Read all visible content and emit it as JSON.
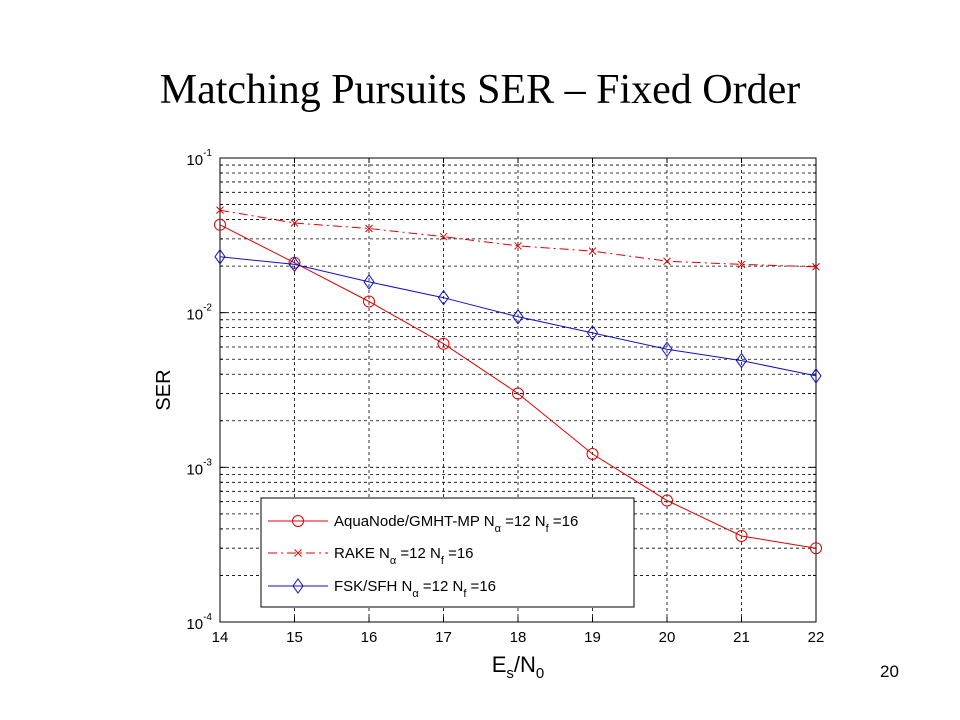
{
  "slide": {
    "title": "Matching Pursuits SER – Fixed Order",
    "page_number": "20"
  },
  "chart_data": {
    "type": "line",
    "title": "",
    "xlabel": {
      "main": "E",
      "sub1": "s",
      "mid": "/N",
      "sub2": "0"
    },
    "ylabel": "SER",
    "y_scale": "log",
    "xlim": [
      14,
      22
    ],
    "ylim": [
      0.0001,
      0.1
    ],
    "grid": true,
    "legend_position": "bottom-right",
    "x": [
      14,
      15,
      16,
      17,
      18,
      19,
      20,
      21,
      22
    ],
    "x_tick_labels": [
      "14",
      "15",
      "16",
      "17",
      "18",
      "19",
      "20",
      "21",
      "22"
    ],
    "y_tick_labels": [
      {
        "value": 0.1,
        "base": "10",
        "exp": "-1"
      },
      {
        "value": 0.01,
        "base": "10",
        "exp": "-2"
      },
      {
        "value": 0.001,
        "base": "10",
        "exp": "-3"
      },
      {
        "value": 0.0001,
        "base": "10",
        "exp": "-4"
      }
    ],
    "series": [
      {
        "id": "aquanode",
        "legend": {
          "main": "AquaNode/GMHT-MP N",
          "sub1": "α",
          "mid": " =12 N",
          "sub2": "f",
          "tail": " =16"
        },
        "color": "#e00000",
        "marker": "circle",
        "dash": "",
        "values": [
          0.037,
          0.021,
          0.0118,
          0.0063,
          0.003,
          0.00122,
          0.00061,
          0.00036,
          0.0003
        ]
      },
      {
        "id": "rake",
        "legend": {
          "main": "RAKE N",
          "sub1": "α",
          "mid": " =12 N",
          "sub2": "f",
          "tail": " =16"
        },
        "color": "#e00000",
        "marker": "x",
        "dash": "9,4,2,4",
        "values": [
          0.046,
          0.038,
          0.035,
          0.031,
          0.027,
          0.025,
          0.0215,
          0.0205,
          0.0198
        ]
      },
      {
        "id": "fsk",
        "legend": {
          "main": "FSK/SFH N",
          "sub1": "α",
          "mid": " =12 N",
          "sub2": "f",
          "tail": " =16"
        },
        "color": "#1010c8",
        "marker": "diamond",
        "dash": "",
        "values": [
          0.023,
          0.0205,
          0.0158,
          0.0125,
          0.0094,
          0.0074,
          0.0058,
          0.0049,
          0.0039
        ]
      }
    ]
  }
}
